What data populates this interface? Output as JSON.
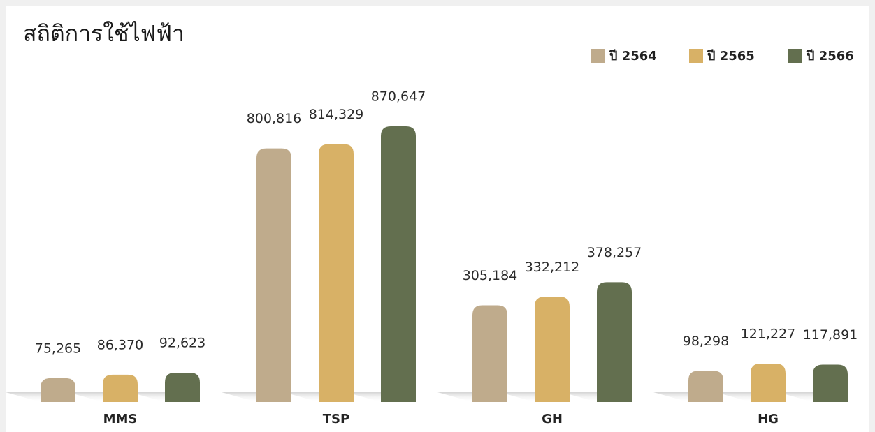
{
  "chart_data": {
    "type": "bar",
    "title": "สถิติการใช้ไฟฟ้า",
    "categories": [
      "MMS",
      "TSP",
      "GH",
      "HG"
    ],
    "series": [
      {
        "name": "ปี 2564",
        "color": "#bfab8c",
        "values": [
          75265,
          800816,
          305184,
          98298
        ],
        "value_labels": [
          "75,265",
          "800,816",
          "305,184",
          "98,298"
        ]
      },
      {
        "name": "ปี 2565",
        "color": "#d8b166",
        "values": [
          86370,
          814329,
          332212,
          121227
        ],
        "value_labels": [
          "86,370",
          "814,329",
          "332,212",
          "121,227"
        ]
      },
      {
        "name": "ปี 2566",
        "color": "#636f4f",
        "values": [
          92623,
          870647,
          378257,
          117891
        ],
        "value_labels": [
          "92,623",
          "870,647",
          "378,257",
          "117,891"
        ]
      }
    ],
    "legend": "top-right"
  }
}
